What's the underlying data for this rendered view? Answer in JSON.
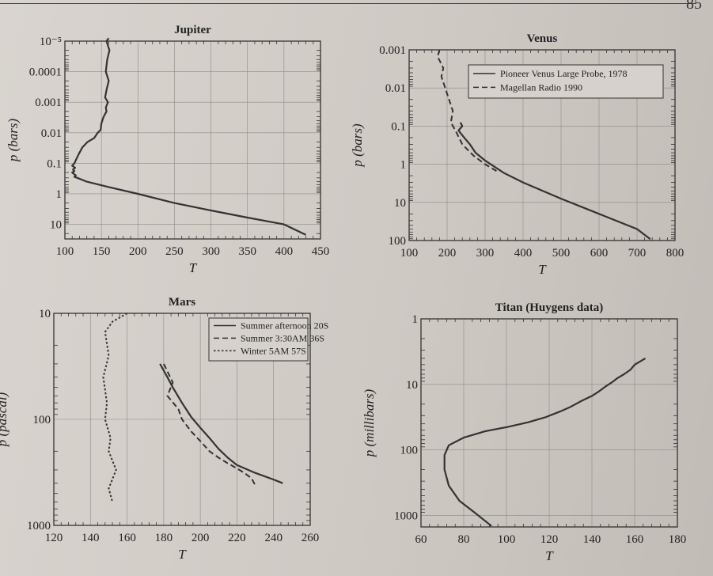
{
  "page": {
    "number": "85"
  },
  "chart_data": [
    {
      "id": "jupiter",
      "type": "line",
      "title": "Jupiter",
      "xlabel": "T",
      "ylabel": "p (bars)",
      "xlim": [
        100,
        450
      ],
      "ylim": [
        1e-05,
        30
      ],
      "yscale": "log",
      "yinverted": true,
      "xticks": [
        100,
        150,
        200,
        250,
        300,
        350,
        400,
        450
      ],
      "yticks": [
        1e-05,
        0.0001,
        0.001,
        0.01,
        0.1,
        1,
        10
      ],
      "yticklabels": [
        "10⁻⁵",
        "0.0001",
        "0.001",
        "0.01",
        "0.1",
        "1",
        "10"
      ],
      "grid": true,
      "series": [
        {
          "style": "solid",
          "x": [
            160,
            157,
            161,
            158,
            156,
            160,
            157,
            155,
            159,
            156,
            157,
            153,
            150,
            149,
            145,
            140,
            131,
            124,
            119,
            116,
            113,
            110,
            114,
            111,
            113,
            110,
            112,
            115,
            113,
            117,
            130,
            160,
            200,
            250,
            300,
            350,
            400,
            430
          ],
          "y": [
            8e-06,
            1e-05,
            2e-05,
            4e-05,
            0.0001,
            0.0002,
            0.0004,
            0.0007,
            0.001,
            0.0015,
            0.002,
            0.003,
            0.005,
            0.008,
            0.01,
            0.015,
            0.02,
            0.03,
            0.05,
            0.07,
            0.1,
            0.12,
            0.14,
            0.16,
            0.18,
            0.2,
            0.22,
            0.25,
            0.28,
            0.3,
            0.4,
            0.6,
            1,
            2,
            3.5,
            6,
            10,
            22
          ]
        }
      ]
    },
    {
      "id": "venus",
      "type": "line",
      "title": "Venus",
      "xlabel": "T",
      "ylabel": "p (bars)",
      "xlim": [
        100,
        800
      ],
      "ylim": [
        0.001,
        100
      ],
      "yscale": "log",
      "yinverted": true,
      "xticks": [
        100,
        200,
        300,
        400,
        500,
        600,
        700,
        800
      ],
      "yticks": [
        0.001,
        0.01,
        0.1,
        1,
        10,
        100
      ],
      "yticklabels": [
        "0.001",
        "0.01",
        "0.1",
        "1",
        "10",
        "100"
      ],
      "grid": true,
      "legend_position": "top-right",
      "series": [
        {
          "name": "Pioneer Venus Large Probe, 1978",
          "style": "solid",
          "x": [
            235,
            240,
            230,
            245,
            260,
            275,
            300,
            350,
            400,
            500,
            600,
            700,
            735
          ],
          "y": [
            0.08,
            0.1,
            0.13,
            0.2,
            0.3,
            0.5,
            0.8,
            1.7,
            3,
            8,
            20,
            50,
            92
          ]
        },
        {
          "name": "Magellan Radio 1990",
          "style": "dashed",
          "x": [
            180,
            175,
            190,
            185,
            195,
            205,
            215,
            210,
            225,
            240,
            270,
            300,
            330
          ],
          "y": [
            0.001,
            0.0015,
            0.003,
            0.005,
            0.01,
            0.02,
            0.04,
            0.08,
            0.15,
            0.3,
            0.6,
            1,
            1.5
          ]
        }
      ]
    },
    {
      "id": "mars",
      "type": "line",
      "title": "Mars",
      "xlabel": "T",
      "ylabel": "p (pascal)",
      "xlim": [
        120,
        260
      ],
      "ylim": [
        10,
        1000
      ],
      "yscale": "log",
      "yinverted": true,
      "xticks": [
        120,
        140,
        160,
        180,
        200,
        220,
        240,
        260
      ],
      "yticks": [
        10,
        100,
        1000
      ],
      "yticklabels": [
        "10",
        "100",
        "1000"
      ],
      "grid": true,
      "legend_position": "top-right",
      "series": [
        {
          "name": "Summer afternoon 20S",
          "style": "solid",
          "x": [
            178,
            182,
            185,
            190,
            195,
            200,
            205,
            210,
            215,
            220,
            230,
            240,
            245
          ],
          "y": [
            30,
            40,
            50,
            70,
            95,
            120,
            150,
            190,
            230,
            270,
            320,
            370,
            400
          ]
        },
        {
          "name": "Summer 3:30AM 36S",
          "style": "dashed",
          "x": [
            180,
            185,
            182,
            188,
            190,
            195,
            200,
            205,
            210,
            215,
            220,
            224,
            228,
            230
          ],
          "y": [
            30,
            45,
            60,
            80,
            100,
            130,
            160,
            200,
            230,
            260,
            290,
            320,
            360,
            420
          ]
        },
        {
          "name": "Winter  5AM 57S",
          "style": "dotted",
          "x": [
            160,
            152,
            148,
            150,
            147,
            149,
            148,
            151,
            150,
            154,
            150,
            152
          ],
          "y": [
            10,
            12,
            15,
            25,
            40,
            70,
            100,
            150,
            200,
            300,
            450,
            600
          ]
        }
      ]
    },
    {
      "id": "titan",
      "type": "line",
      "title": "Titan (Huygens data)",
      "xlabel": "T",
      "ylabel": "p (millibars)",
      "xlim": [
        60,
        180
      ],
      "ylim": [
        1,
        1500
      ],
      "yscale": "log",
      "yinverted": true,
      "xticks": [
        60,
        80,
        100,
        120,
        140,
        160,
        180
      ],
      "yticks": [
        1,
        10,
        100,
        1000
      ],
      "yticklabels": [
        "1",
        "10",
        "100",
        "1000"
      ],
      "grid": true,
      "series": [
        {
          "style": "solid",
          "x": [
            165,
            160,
            158,
            155,
            152,
            150,
            146,
            143,
            140,
            135,
            130,
            125,
            118,
            110,
            100,
            90,
            80,
            73,
            71,
            71,
            73,
            78,
            85,
            93
          ],
          "y": [
            4,
            5,
            6,
            7,
            8,
            9,
            11,
            13,
            15,
            18,
            22,
            26,
            32,
            38,
            45,
            52,
            65,
            85,
            120,
            200,
            350,
            600,
            900,
            1450
          ]
        }
      ]
    }
  ]
}
